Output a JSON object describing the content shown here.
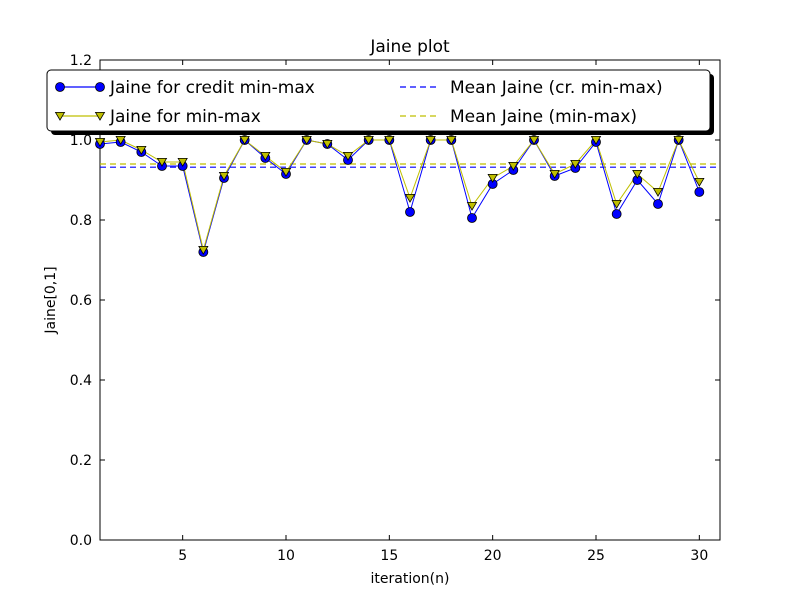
{
  "chart_data": {
    "type": "line",
    "title": "Jaine plot",
    "xlabel": "iteration(n)",
    "ylabel": "Jaine[0,1]",
    "xlim": [
      1,
      31
    ],
    "ylim": [
      0.0,
      1.2
    ],
    "xticks": [
      5,
      10,
      15,
      20,
      25,
      30
    ],
    "yticks": [
      0.0,
      0.2,
      0.4,
      0.6,
      0.8,
      1.0,
      1.2
    ],
    "x": [
      1,
      2,
      3,
      4,
      5,
      6,
      7,
      8,
      9,
      10,
      11,
      12,
      13,
      14,
      15,
      16,
      17,
      18,
      19,
      20,
      21,
      22,
      23,
      24,
      25,
      26,
      27,
      28,
      29,
      30
    ],
    "legend_position": "top",
    "grid": false,
    "series": [
      {
        "name": "Jaine for credit min-max",
        "color": "#0000ff",
        "marker": "circle",
        "style": "solid",
        "values": [
          0.99,
          0.995,
          0.97,
          0.935,
          0.935,
          0.72,
          0.905,
          1.0,
          0.955,
          0.915,
          1.0,
          0.99,
          0.95,
          1.0,
          1.0,
          0.82,
          1.0,
          1.0,
          0.805,
          0.89,
          0.925,
          1.0,
          0.91,
          0.93,
          0.995,
          0.815,
          0.9,
          0.84,
          1.0,
          0.87
        ]
      },
      {
        "name": "Jaine for min-max",
        "color": "#bfbf00",
        "marker": "triangle-down",
        "style": "solid",
        "values": [
          0.995,
          1.0,
          0.975,
          0.945,
          0.945,
          0.725,
          0.91,
          1.0,
          0.96,
          0.92,
          1.0,
          0.99,
          0.96,
          1.0,
          1.0,
          0.855,
          1.0,
          1.0,
          0.835,
          0.905,
          0.935,
          1.0,
          0.915,
          0.94,
          1.0,
          0.84,
          0.915,
          0.87,
          1.0,
          0.895
        ]
      },
      {
        "name": "Mean Jaine (cr. min-max)",
        "color": "#0000ff",
        "style": "dashed",
        "constant": 0.932
      },
      {
        "name": "Mean Jaine (min-max)",
        "color": "#bfbf00",
        "style": "dashed",
        "constant": 0.94
      }
    ]
  }
}
